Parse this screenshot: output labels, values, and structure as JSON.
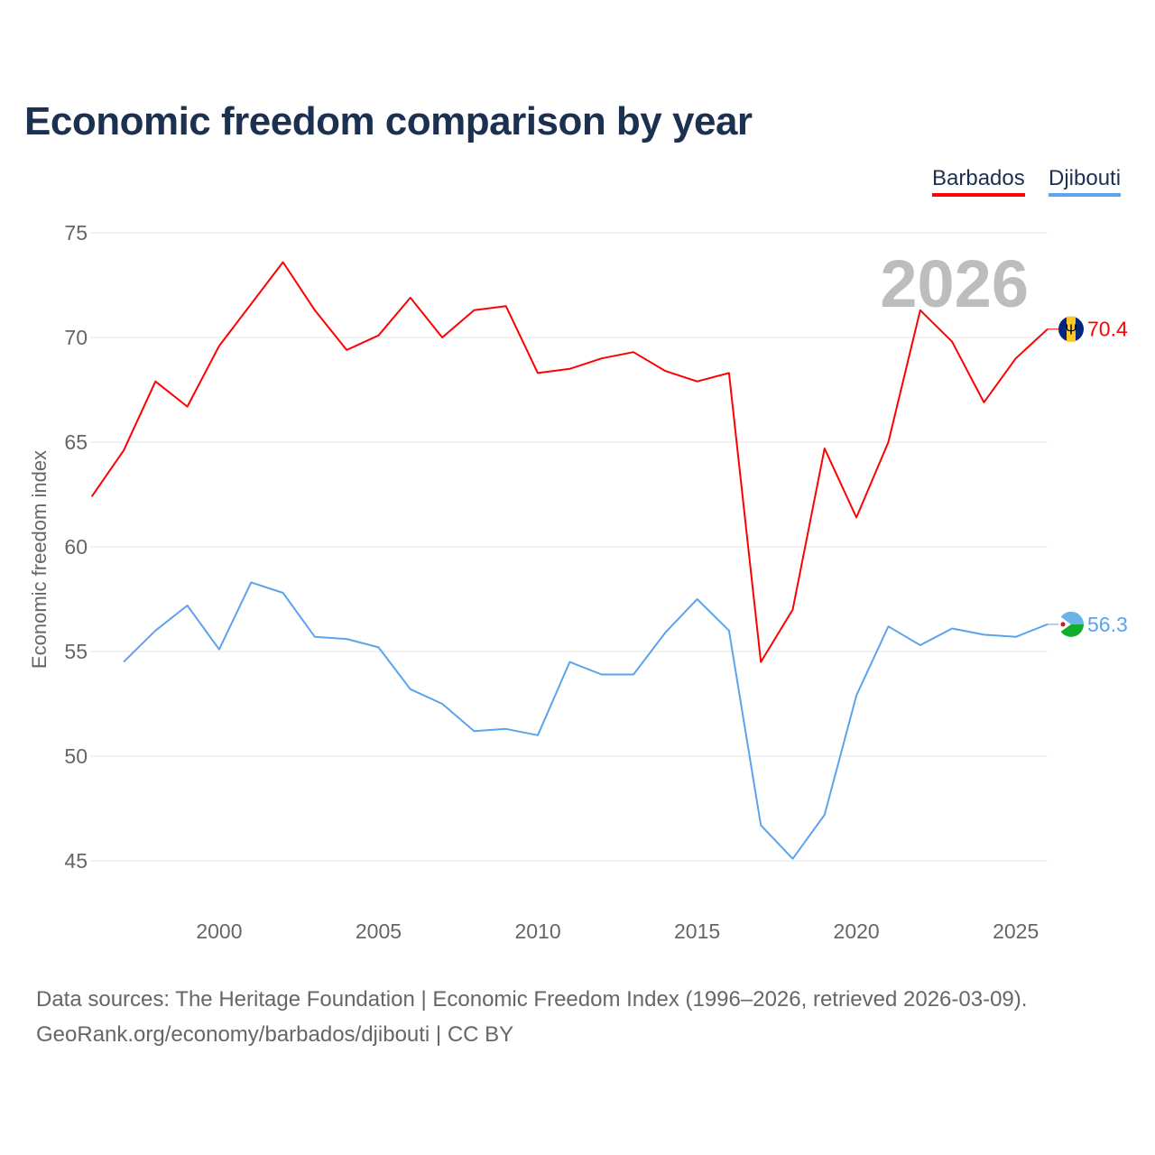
{
  "chart_data": {
    "type": "line",
    "title": "Economic freedom comparison by year",
    "xlabel": "",
    "ylabel": "Economic freedom index",
    "xlim": [
      1996,
      2026
    ],
    "ylim": [
      45,
      75
    ],
    "yticks": [
      45,
      50,
      55,
      60,
      65,
      70,
      75
    ],
    "xticks": [
      2000,
      2005,
      2010,
      2015,
      2020,
      2025
    ],
    "grid": true,
    "legend_placement": "top-right",
    "year_annotation": "2026",
    "series": [
      {
        "name": "Barbados",
        "color": "#ff0000",
        "end_label": "70.4",
        "x": [
          1996,
          1997,
          1998,
          1999,
          2000,
          2001,
          2002,
          2003,
          2004,
          2005,
          2006,
          2007,
          2008,
          2009,
          2010,
          2011,
          2012,
          2013,
          2014,
          2015,
          2016,
          2017,
          2018,
          2019,
          2020,
          2021,
          2022,
          2023,
          2024,
          2025,
          2026
        ],
        "values": [
          62.4,
          64.6,
          67.9,
          66.7,
          69.6,
          71.6,
          73.6,
          71.3,
          69.4,
          70.1,
          71.9,
          70.0,
          71.3,
          71.5,
          68.3,
          68.5,
          69.0,
          69.3,
          68.4,
          67.9,
          68.3,
          54.5,
          57.0,
          64.7,
          61.4,
          65.0,
          71.3,
          69.8,
          66.9,
          69.0,
          70.4
        ]
      },
      {
        "name": "Djibouti",
        "color": "#5ba3ec",
        "end_label": "56.3",
        "x": [
          1997,
          1998,
          1999,
          2000,
          2001,
          2002,
          2003,
          2004,
          2005,
          2006,
          2007,
          2008,
          2009,
          2010,
          2011,
          2012,
          2013,
          2014,
          2015,
          2016,
          2017,
          2018,
          2019,
          2020,
          2021,
          2022,
          2023,
          2024,
          2025,
          2026
        ],
        "values": [
          54.5,
          56.0,
          57.2,
          55.1,
          58.3,
          57.8,
          55.7,
          55.6,
          55.2,
          53.2,
          52.5,
          51.2,
          51.3,
          51.0,
          54.5,
          53.9,
          53.9,
          55.9,
          57.5,
          56.0,
          46.7,
          45.1,
          47.2,
          52.9,
          56.2,
          55.3,
          56.1,
          55.8,
          55.7,
          56.3
        ]
      }
    ]
  },
  "footer": {
    "line1": "Data sources: The Heritage Foundation | Economic Freedom Index (1996–2026, retrieved 2026-03-09).",
    "line2": "GeoRank.org/economy/barbados/djibouti | CC BY"
  }
}
